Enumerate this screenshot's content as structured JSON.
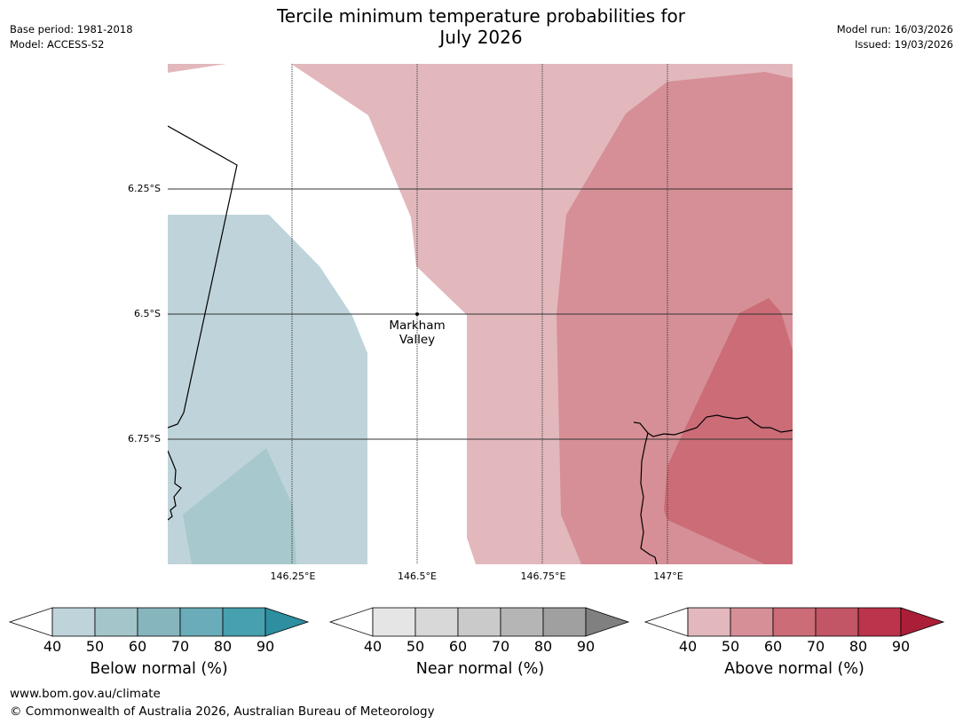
{
  "title_line1": "Tercile minimum temperature probabilities for",
  "title_line2": "July 2026",
  "meta_left": {
    "base_period": "Base period: 1981-2018",
    "model": "Model: ACCESS-S2"
  },
  "meta_right": {
    "model_run": "Model run: 16/03/2026",
    "issued": "Issued: 19/03/2026"
  },
  "map": {
    "lat_labels": [
      "6.25°S",
      "6.5°S",
      "6.75°S"
    ],
    "lon_labels": [
      "146.25°E",
      "146.5°E",
      "146.75°E",
      "147°E"
    ],
    "place_line1": "Markham",
    "place_line2": "Valley"
  },
  "colorbars": [
    {
      "label": "Below normal (%)",
      "ticks": [
        "40",
        "50",
        "60",
        "70",
        "80",
        "90"
      ],
      "colors": [
        "#bfd4da",
        "#a4c5ca",
        "#87b5bd",
        "#6aacb9",
        "#47a0ae",
        "#2d8f9f"
      ]
    },
    {
      "label": "Near normal (%)",
      "ticks": [
        "40",
        "50",
        "60",
        "70",
        "80",
        "90"
      ],
      "colors": [
        "#e5e5e5",
        "#d8d8d8",
        "#cacaca",
        "#b5b5b5",
        "#a0a0a0",
        "#808080"
      ]
    },
    {
      "label": "Above normal (%)",
      "ticks": [
        "40",
        "50",
        "60",
        "70",
        "80",
        "90"
      ],
      "colors": [
        "#e2b8bd",
        "#d68f96",
        "#cb6c77",
        "#c25566",
        "#bc344b",
        "#aa1f37"
      ]
    }
  ],
  "footer": {
    "url": "www.bom.gov.au/climate",
    "copyright": "© Commonwealth of Australia 2026, Australian Bureau of Meteorology"
  }
}
